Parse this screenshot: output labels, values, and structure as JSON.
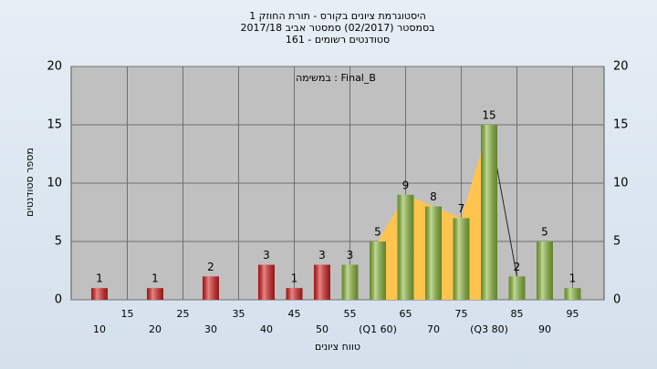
{
  "chart_data": {
    "type": "bar",
    "title": [
      "היסטוגרמת ציונים בקורס - תורת החוזק 1",
      "בסמסטר (02/2017) סמסטר אביב 2017/18",
      "סטודנטים רשומים - 161"
    ],
    "annotation": "במשימה : Final_B",
    "xlabel": "טווח ציונים",
    "ylabel": "מספר סטודנטים",
    "categories": [
      "10",
      "15",
      "20",
      "25",
      "30",
      "35",
      "40",
      "45",
      "50",
      "55",
      "(Q1 60)",
      "65",
      "70",
      "75",
      "(Q3 80)",
      "85",
      "90",
      "95"
    ],
    "values": [
      1,
      null,
      1,
      null,
      2,
      null,
      3,
      1,
      3,
      3,
      5,
      9,
      8,
      7,
      15,
      2,
      5,
      1
    ],
    "colors": [
      "#d92020",
      "#d92020",
      "#d92020",
      "#d92020",
      "#d92020",
      "#d92020",
      "#d92020",
      "#d92020",
      "#d92020",
      "#8dbb3c",
      "#8dbb3c",
      "#8dbb3c",
      "#8dbb3c",
      "#8dbb3c",
      "#8dbb3c",
      "#8dbb3c",
      "#8dbb3c",
      "#8dbb3c"
    ],
    "area_color": "#ffc44d",
    "ylim": [
      0,
      20
    ],
    "yticks": [
      0,
      5,
      10,
      15,
      20
    ],
    "grid": true
  }
}
